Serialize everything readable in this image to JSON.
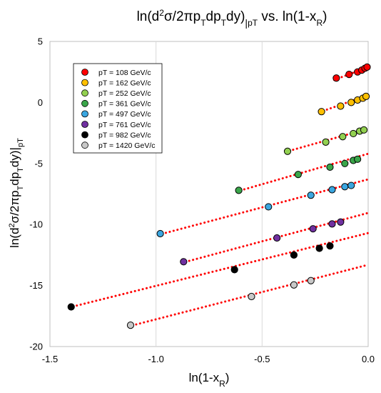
{
  "chart_data": {
    "type": "scatter",
    "title": {
      "main": "ln(d",
      "sup": "2",
      "mid": "σ/2πp",
      "sub1": "T",
      "mid2": "dp",
      "sub2": "T",
      "end": "dy)",
      "bar_sub": "|",
      "pT_sub": "pT",
      "vs": " vs. ln(1-x",
      "R": "R",
      "close": ")"
    },
    "xlabel": {
      "pre": "ln(1-x",
      "sub": "R",
      "post": ")"
    },
    "ylabel": {
      "pre": "ln(d",
      "sup": "2",
      "mid": "σ/2πp",
      "sub1": "T",
      "mid2": "dp",
      "sub2": "T",
      "end": "dy)",
      "bar": "|",
      "sub3": "pT"
    },
    "xlim": [
      -1.5,
      0.0
    ],
    "ylim": [
      -20,
      5
    ],
    "xticks": [
      "-1.5",
      "-1.0",
      "-0.5",
      "0.0"
    ],
    "xtick_values": [
      -1.5,
      -1.0,
      -0.5,
      0.0
    ],
    "yticks": [
      "5",
      "0",
      "-5",
      "-10",
      "-15",
      "-20"
    ],
    "ytick_values": [
      5,
      0,
      -5,
      -10,
      -15,
      -20
    ],
    "grid": "vertical",
    "legend_position": "upper-left",
    "series": [
      {
        "name": "pT = 108 GeV/c",
        "color": "#ff0000",
        "points": [
          [
            -0.15,
            2.0
          ],
          [
            -0.09,
            2.3
          ],
          [
            -0.05,
            2.5
          ],
          [
            -0.03,
            2.65
          ],
          [
            -0.015,
            2.8
          ],
          [
            -0.005,
            2.9
          ]
        ],
        "fit": [
          [
            -0.16,
            1.85
          ],
          [
            0.0,
            2.9
          ]
        ]
      },
      {
        "name": "pT = 162 GeV/c",
        "color": "#ffc000",
        "points": [
          [
            -0.22,
            -0.75
          ],
          [
            -0.13,
            -0.3
          ],
          [
            -0.08,
            0.0
          ],
          [
            -0.05,
            0.2
          ],
          [
            -0.025,
            0.35
          ],
          [
            -0.01,
            0.5
          ]
        ],
        "fit": [
          [
            -0.23,
            -0.8
          ],
          [
            0.0,
            0.6
          ]
        ]
      },
      {
        "name": "pT = 252 GeV/c",
        "color": "#92d050",
        "points": [
          [
            -0.38,
            -4.0
          ],
          [
            -0.2,
            -3.25
          ],
          [
            -0.12,
            -2.8
          ],
          [
            -0.07,
            -2.55
          ],
          [
            -0.04,
            -2.35
          ],
          [
            -0.02,
            -2.25
          ]
        ],
        "fit": [
          [
            -0.39,
            -4.05
          ],
          [
            0.0,
            -2.15
          ]
        ]
      },
      {
        "name": "pT = 361 GeV/c",
        "color": "#3aa64a",
        "points": [
          [
            -0.61,
            -7.2
          ],
          [
            -0.33,
            -5.9
          ],
          [
            -0.18,
            -5.3
          ],
          [
            -0.11,
            -5.0
          ],
          [
            -0.07,
            -4.75
          ],
          [
            -0.05,
            -4.65
          ]
        ],
        "fit": [
          [
            -0.62,
            -7.3
          ],
          [
            0.0,
            -4.2
          ]
        ]
      },
      {
        "name": "pT = 497 GeV/c",
        "color": "#3aa6e0",
        "points": [
          [
            -0.98,
            -10.75
          ],
          [
            -0.47,
            -8.55
          ],
          [
            -0.27,
            -7.6
          ],
          [
            -0.17,
            -7.15
          ],
          [
            -0.11,
            -6.9
          ],
          [
            -0.08,
            -6.8
          ]
        ],
        "fit": [
          [
            -0.99,
            -10.85
          ],
          [
            0.0,
            -6.3
          ]
        ]
      },
      {
        "name": "pT = 761 GeV/c",
        "color": "#7030a0",
        "points": [
          [
            -0.87,
            -13.05
          ],
          [
            -0.43,
            -11.1
          ],
          [
            -0.26,
            -10.35
          ],
          [
            -0.17,
            -9.95
          ],
          [
            -0.13,
            -9.8
          ]
        ],
        "fit": [
          [
            -0.88,
            -13.15
          ],
          [
            0.0,
            -9.05
          ]
        ]
      },
      {
        "name": "pT = 982 GeV/c",
        "color": "#000000",
        "points": [
          [
            -1.4,
            -16.75
          ],
          [
            -0.63,
            -13.7
          ],
          [
            -0.35,
            -12.5
          ],
          [
            -0.23,
            -11.95
          ],
          [
            -0.18,
            -11.75
          ]
        ],
        "fit": [
          [
            -1.41,
            -16.8
          ],
          [
            0.0,
            -10.7
          ]
        ]
      },
      {
        "name": "pT = 1420 GeV/c",
        "color": "#c8c8c8",
        "points": [
          [
            -1.12,
            -18.25
          ],
          [
            -0.55,
            -15.9
          ],
          [
            -0.35,
            -14.95
          ],
          [
            -0.27,
            -14.6
          ]
        ],
        "fit": [
          [
            -1.13,
            -18.35
          ],
          [
            0.0,
            -13.3
          ]
        ]
      }
    ],
    "fit_color": "#ff0000",
    "marker_edge": "#000000"
  }
}
